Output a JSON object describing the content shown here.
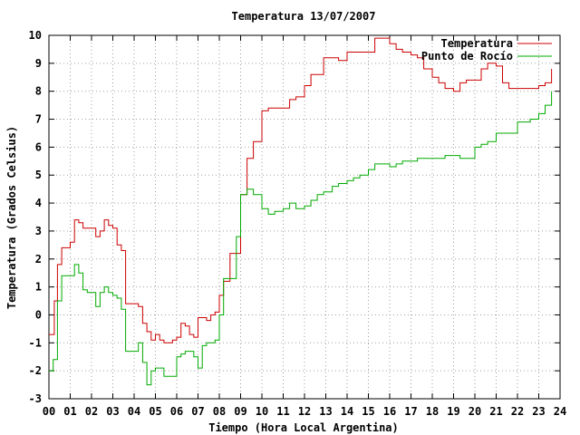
{
  "chart_data": {
    "type": "line",
    "title": "Temperatura 13/07/2007",
    "xlabel": "Tiempo (Hora Local Argentina)",
    "ylabel": "Temperatura (Grados Celsius)",
    "xlim": [
      0,
      24
    ],
    "ylim": [
      -3,
      10
    ],
    "x_ticks": [
      0,
      1,
      2,
      3,
      4,
      5,
      6,
      7,
      8,
      9,
      10,
      11,
      12,
      13,
      14,
      15,
      16,
      17,
      18,
      19,
      20,
      21,
      22,
      23,
      24
    ],
    "x_tick_labels": [
      "00",
      "01",
      "02",
      "03",
      "04",
      "05",
      "06",
      "07",
      "08",
      "09",
      "10",
      "11",
      "12",
      "13",
      "14",
      "15",
      "16",
      "17",
      "18",
      "19",
      "20",
      "21",
      "22",
      "23",
      "24"
    ],
    "y_ticks": [
      -3,
      -2,
      -1,
      0,
      1,
      2,
      3,
      4,
      5,
      6,
      7,
      8,
      9,
      10
    ],
    "grid": true,
    "legend_position": "top-right",
    "series": [
      {
        "name": "Temperatura",
        "color": "#cc0000",
        "x": [
          0.0,
          0.25,
          0.4,
          0.6,
          1.0,
          1.2,
          1.4,
          1.6,
          1.8,
          2.0,
          2.2,
          2.4,
          2.6,
          2.8,
          3.0,
          3.2,
          3.4,
          3.6,
          3.8,
          4.0,
          4.2,
          4.4,
          4.6,
          4.8,
          5.0,
          5.2,
          5.4,
          5.6,
          5.8,
          6.0,
          6.2,
          6.4,
          6.6,
          6.8,
          7.0,
          7.2,
          7.4,
          7.6,
          7.8,
          8.0,
          8.2,
          8.5,
          8.8,
          9.0,
          9.3,
          9.6,
          10.0,
          10.3,
          10.6,
          11.0,
          11.3,
          11.6,
          12.0,
          12.3,
          12.6,
          12.9,
          13.3,
          13.6,
          14.0,
          14.3,
          14.6,
          15.0,
          15.3,
          15.6,
          16.0,
          16.3,
          16.6,
          17.0,
          17.3,
          17.6,
          18.0,
          18.3,
          18.6,
          19.0,
          19.3,
          19.6,
          20.0,
          20.3,
          20.6,
          21.0,
          21.3,
          21.6,
          22.0,
          22.3,
          22.6,
          23.0,
          23.3,
          23.6
        ],
        "y": [
          -0.7,
          0.5,
          1.8,
          2.4,
          2.6,
          3.4,
          3.3,
          3.1,
          3.1,
          3.1,
          2.8,
          3.0,
          3.4,
          3.2,
          3.1,
          2.5,
          2.3,
          0.4,
          0.4,
          0.4,
          0.3,
          -0.3,
          -0.6,
          -0.9,
          -0.7,
          -0.9,
          -1.0,
          -1.0,
          -0.9,
          -0.8,
          -0.3,
          -0.4,
          -0.7,
          -0.8,
          -0.1,
          -0.1,
          -0.2,
          0.0,
          0.1,
          0.7,
          1.2,
          2.2,
          2.2,
          4.3,
          5.6,
          6.2,
          7.3,
          7.4,
          7.4,
          7.4,
          7.7,
          7.8,
          8.2,
          8.6,
          8.6,
          9.2,
          9.2,
          9.1,
          9.4,
          9.4,
          9.4,
          9.4,
          9.9,
          9.9,
          9.7,
          9.5,
          9.4,
          9.3,
          9.2,
          8.8,
          8.5,
          8.3,
          8.1,
          8.0,
          8.3,
          8.4,
          8.4,
          8.8,
          9.0,
          8.9,
          8.3,
          8.1,
          8.1,
          8.1,
          8.1,
          8.2,
          8.3,
          8.8
        ]
      },
      {
        "name": "Punto de Rocío",
        "color": "#00aa00",
        "x": [
          0.0,
          0.2,
          0.4,
          0.6,
          1.0,
          1.2,
          1.4,
          1.6,
          1.8,
          2.0,
          2.2,
          2.4,
          2.6,
          2.8,
          3.0,
          3.2,
          3.4,
          3.6,
          3.8,
          4.0,
          4.2,
          4.4,
          4.6,
          4.8,
          5.0,
          5.2,
          5.4,
          5.6,
          5.8,
          6.0,
          6.2,
          6.4,
          6.6,
          6.8,
          7.0,
          7.2,
          7.4,
          7.6,
          7.8,
          8.0,
          8.2,
          8.5,
          8.8,
          9.0,
          9.3,
          9.6,
          10.0,
          10.3,
          10.6,
          11.0,
          11.3,
          11.6,
          12.0,
          12.3,
          12.6,
          12.9,
          13.3,
          13.6,
          14.0,
          14.3,
          14.6,
          15.0,
          15.3,
          15.6,
          16.0,
          16.3,
          16.6,
          17.0,
          17.3,
          17.6,
          18.0,
          18.3,
          18.6,
          19.0,
          19.3,
          19.6,
          20.0,
          20.3,
          20.6,
          21.0,
          21.3,
          21.6,
          22.0,
          22.3,
          22.6,
          23.0,
          23.3,
          23.6
        ],
        "y": [
          -2.0,
          -1.6,
          0.5,
          1.4,
          1.4,
          1.8,
          1.5,
          0.9,
          0.8,
          0.8,
          0.3,
          0.8,
          1.0,
          0.8,
          0.7,
          0.6,
          0.2,
          -1.3,
          -1.3,
          -1.3,
          -1.0,
          -1.7,
          -2.5,
          -2.0,
          -1.9,
          -1.9,
          -2.2,
          -2.2,
          -2.2,
          -1.5,
          -1.4,
          -1.3,
          -1.3,
          -1.5,
          -1.9,
          -1.1,
          -1.0,
          -1.0,
          -0.9,
          0.0,
          1.3,
          1.3,
          2.8,
          4.3,
          4.5,
          4.3,
          3.8,
          3.6,
          3.7,
          3.8,
          4.0,
          3.8,
          3.9,
          4.1,
          4.3,
          4.4,
          4.6,
          4.7,
          4.8,
          4.9,
          5.0,
          5.2,
          5.4,
          5.4,
          5.3,
          5.4,
          5.5,
          5.5,
          5.6,
          5.6,
          5.6,
          5.6,
          5.7,
          5.7,
          5.6,
          5.6,
          6.0,
          6.1,
          6.2,
          6.5,
          6.5,
          6.5,
          6.9,
          6.9,
          7.0,
          7.2,
          7.5,
          8.0
        ]
      }
    ]
  }
}
